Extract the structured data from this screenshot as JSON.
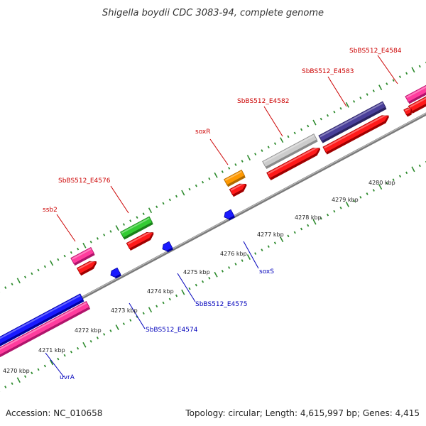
{
  "title": "Shigella boydii CDC 3083-94, complete genome",
  "footer": {
    "accession": "Accession: NC_010658",
    "summary": "Topology: circular; Length: 4,615,997 bp; Genes: 4,415"
  },
  "colors": {
    "backbone": "#8c8c8c",
    "label_top": "#cc0000",
    "label_bottom": "#0000bb",
    "tick": "#2e8b2e"
  },
  "scale_labels": [
    {
      "kbp": 4270,
      "text": "4270 kbp"
    },
    {
      "kbp": 4271,
      "text": "4271 kbp"
    },
    {
      "kbp": 4272,
      "text": "4272 kbp"
    },
    {
      "kbp": 4273,
      "text": "4273 kbp"
    },
    {
      "kbp": 4274,
      "text": "4274 kbp"
    },
    {
      "kbp": 4275,
      "text": "4275 kbp"
    },
    {
      "kbp": 4276,
      "text": "4276 kbp"
    },
    {
      "kbp": 4277,
      "text": "4277 kbp"
    },
    {
      "kbp": 4278,
      "text": "4278 kbp"
    },
    {
      "kbp": 4279,
      "text": "4279 kbp"
    },
    {
      "kbp": 4280,
      "text": "4280 kbp"
    }
  ],
  "gene_labels_top": [
    {
      "name": "ssb2"
    },
    {
      "name": "SbBS512_E4576"
    },
    {
      "name": "soxR"
    },
    {
      "name": "SbBS512_E4582"
    },
    {
      "name": "SbBS512_E4583"
    },
    {
      "name": "SbBS512_E4584"
    }
  ],
  "gene_labels_bottom": [
    {
      "name": "uvrA"
    },
    {
      "name": "SbBS512_E4574"
    },
    {
      "name": "SbBS512_E4575"
    },
    {
      "name": "soxS"
    }
  ]
}
